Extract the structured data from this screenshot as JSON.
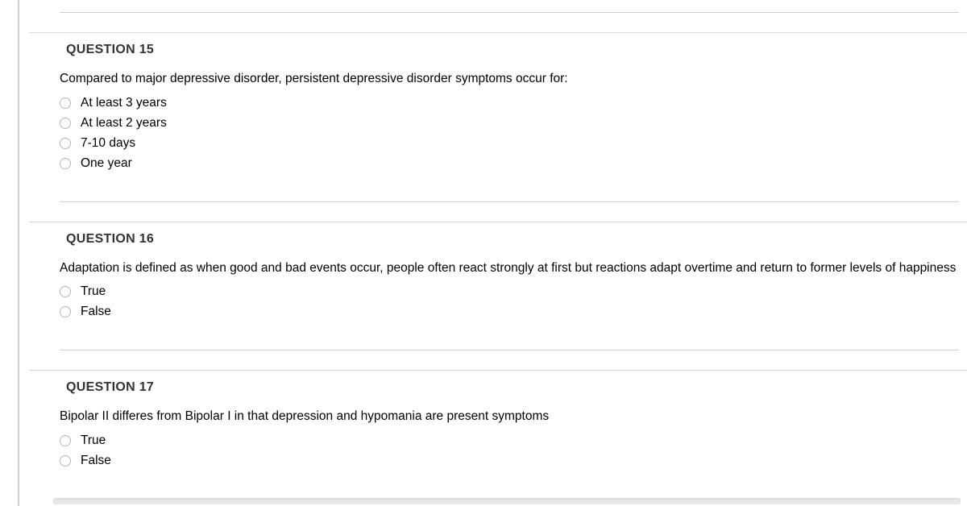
{
  "questions": [
    {
      "title": "QUESTION 15",
      "prompt": "Compared to major depressive disorder, persistent depressive disorder symptoms occur for:",
      "options": [
        "At least 3 years",
        "At least 2 years",
        "7-10 days",
        "One year"
      ]
    },
    {
      "title": "QUESTION 16",
      "prompt": "Adaptation is defined as when good and bad events occur, people often react strongly at first but reactions adapt overtime and return to former levels of happiness",
      "options": [
        "True",
        "False"
      ]
    },
    {
      "title": "QUESTION 17",
      "prompt": "Bipolar II differes from Bipolar I in that depression and hypomania are present symptoms",
      "options": [
        "True",
        "False"
      ]
    }
  ],
  "colors": {
    "text": "#000000",
    "header": "#333333",
    "border": "#d0d0d0",
    "radio_border": "#b8b8b8",
    "background": "#ffffff"
  }
}
